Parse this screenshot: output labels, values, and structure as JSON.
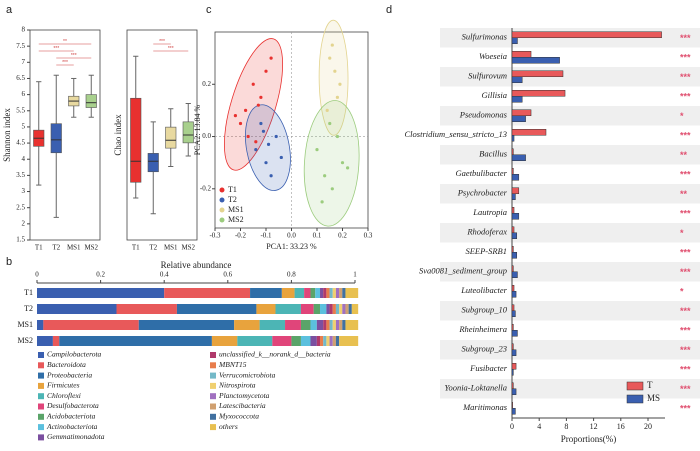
{
  "panels": [
    "a",
    "b",
    "c",
    "d"
  ],
  "chart_data": [
    {
      "type": "box",
      "ylabel": "Shannon index",
      "categories": [
        "T1",
        "T2",
        "MS1",
        "MS2"
      ],
      "colors": [
        "#e8312f",
        "#3a5fb0",
        "#e8d9a0",
        "#a8d08d"
      ],
      "boxes": [
        {
          "min": 3.2,
          "q1": 4.4,
          "median": 4.65,
          "q3": 4.9,
          "max": 6.4
        },
        {
          "min": 2.2,
          "q1": 4.2,
          "median": 4.6,
          "q3": 5.1,
          "max": 6.6
        },
        {
          "min": 5.3,
          "q1": 5.65,
          "median": 5.8,
          "q3": 5.95,
          "max": 6.5
        },
        {
          "min": 5.3,
          "q1": 5.6,
          "median": 5.75,
          "q3": 6.0,
          "max": 6.6
        }
      ],
      "ylim": [
        1.5,
        8
      ],
      "yticks": [
        1.5,
        2,
        2.5,
        3,
        3.5,
        4,
        4.5,
        5,
        5.5,
        6,
        6.5,
        7,
        7.5,
        8
      ],
      "annotations": [
        "**",
        "***",
        "***",
        "***"
      ]
    },
    {
      "type": "box",
      "ylabel": "Chao index",
      "categories": [
        "T1",
        "T2",
        "MS1",
        "MS2"
      ],
      "colors": [
        "#e8312f",
        "#3a5fb0",
        "#e8d9a0",
        "#a8d08d"
      ],
      "boxes": [
        {
          "min": 1.6,
          "q1": 2.2,
          "median": 3.0,
          "q3": 5.4,
          "max": 7.0
        },
        {
          "min": 1.0,
          "q1": 2.6,
          "median": 3.0,
          "q3": 3.3,
          "max": 4.5
        },
        {
          "min": 2.8,
          "q1": 3.5,
          "median": 3.8,
          "q3": 4.3,
          "max": 5.0
        },
        {
          "min": 3.2,
          "q1": 3.7,
          "median": 4.0,
          "q3": 4.5,
          "max": 5.2
        }
      ],
      "ylim": [
        0,
        8
      ],
      "annotations": [
        "***",
        "***"
      ]
    },
    {
      "type": "bar",
      "stacked": true,
      "orientation": "horizontal",
      "title": "Relative abundance",
      "categories": [
        "T1",
        "T2",
        "MS1",
        "MS2"
      ],
      "xlim": [
        0,
        1
      ],
      "xticks": [
        0,
        0.2,
        0.4,
        0.6,
        0.8,
        1
      ],
      "series": [
        {
          "name": "Campilobacterota",
          "color": "#3a5fb0",
          "values": [
            0.4,
            0.25,
            0.02,
            0.05
          ]
        },
        {
          "name": "Bacteroidota",
          "color": "#e8595a",
          "values": [
            0.27,
            0.19,
            0.3,
            0.02
          ]
        },
        {
          "name": "Proteobacteria",
          "color": "#2f6ea8",
          "values": [
            0.1,
            0.25,
            0.3,
            0.48
          ]
        },
        {
          "name": "Firmicutes",
          "color": "#e8a33d",
          "values": [
            0.04,
            0.06,
            0.08,
            0.08
          ]
        },
        {
          "name": "Chloroflexi",
          "color": "#4cb5b5",
          "values": [
            0.03,
            0.08,
            0.08,
            0.11
          ]
        },
        {
          "name": "Desulfobacterota",
          "color": "#e0457a",
          "values": [
            0.02,
            0.04,
            0.05,
            0.06
          ]
        },
        {
          "name": "Acidobacteriota",
          "color": "#5aa469",
          "values": [
            0.015,
            0.02,
            0.03,
            0.03
          ]
        },
        {
          "name": "Actinobacteriota",
          "color": "#5bc0de",
          "values": [
            0.015,
            0.02,
            0.02,
            0.03
          ]
        },
        {
          "name": "Gemmatimonadota",
          "color": "#7b4fa0",
          "values": [
            0.01,
            0.01,
            0.02,
            0.02
          ]
        },
        {
          "name": "unclassified_k__norank_d__bacteria",
          "color": "#b03a6b",
          "values": [
            0.01,
            0.01,
            0.01,
            0.01
          ]
        },
        {
          "name": "MBNT15",
          "color": "#e87d4c",
          "values": [
            0.01,
            0.01,
            0.01,
            0.01
          ]
        },
        {
          "name": "Verrucomicrobiota",
          "color": "#74b9c8",
          "values": [
            0.01,
            0.01,
            0.01,
            0.01
          ]
        },
        {
          "name": "Nitrospirota",
          "color": "#f0d070",
          "values": [
            0.01,
            0.01,
            0.01,
            0.01
          ]
        },
        {
          "name": "Planctomycetota",
          "color": "#a070c0",
          "values": [
            0.01,
            0.01,
            0.01,
            0.01
          ]
        },
        {
          "name": "Latescibacteria",
          "color": "#d0a070",
          "values": [
            0.01,
            0.01,
            0.01,
            0.01
          ]
        },
        {
          "name": "Myxococcota",
          "color": "#4070a0",
          "values": [
            0.01,
            0.01,
            0.01,
            0.01
          ]
        },
        {
          "name": "others",
          "color": "#e8c050",
          "values": [
            0.04,
            0.02,
            0.04,
            0.06
          ]
        }
      ]
    },
    {
      "type": "scatter",
      "xlabel": "PCA1: 33.23 %",
      "ylabel": "PCA2: 13.84 %",
      "xlim": [
        -0.3,
        0.3
      ],
      "ylim": [
        -0.35,
        0.4
      ],
      "xticks": [
        -0.3,
        -0.2,
        -0.1,
        {
          "value": 0,
          "label": "0.0"
        },
        0.1,
        0.2,
        0.3
      ],
      "yticks": [
        -0.2,
        {
          "value": 0,
          "label": "0.0"
        },
        0.2
      ],
      "legend": "lower left",
      "series": [
        {
          "name": "T1",
          "color": "#e8312f",
          "x": [
            -0.2,
            -0.18,
            -0.15,
            -0.12,
            -0.1,
            -0.17,
            -0.22,
            -0.14,
            -0.08,
            -0.13
          ],
          "y": [
            0.05,
            0.1,
            0.2,
            0.15,
            0.25,
            0.0,
            0.08,
            -0.02,
            0.3,
            0.12
          ]
        },
        {
          "name": "T2",
          "color": "#3a5fb0",
          "x": [
            -0.14,
            -0.1,
            -0.06,
            -0.12,
            -0.08,
            -0.04,
            -0.11,
            -0.09
          ],
          "y": [
            -0.05,
            -0.1,
            0.0,
            0.05,
            -0.15,
            -0.08,
            0.02,
            -0.03
          ]
        },
        {
          "name": "MS1",
          "color": "#e3d48f",
          "x": [
            0.15,
            0.17,
            0.18,
            0.16,
            0.19,
            0.14
          ],
          "y": [
            0.3,
            0.25,
            0.15,
            0.35,
            0.2,
            0.1
          ]
        },
        {
          "name": "MS2",
          "color": "#9ccc7e",
          "x": [
            0.1,
            0.13,
            0.16,
            0.2,
            0.18,
            0.12,
            0.22,
            0.15
          ],
          "y": [
            -0.05,
            -0.15,
            -0.2,
            -0.1,
            0.0,
            -0.25,
            -0.12,
            0.05
          ]
        }
      ]
    },
    {
      "type": "bar",
      "orientation": "horizontal",
      "xlabel": "Proportions(%)",
      "legend": "lower right",
      "categories": [
        "Sulfurimonas",
        "Woeseia",
        "Sulfurovum",
        "Gillisia",
        "Pseudomonas",
        "Clostridium_sensu_stricto_13",
        "Bacillus",
        "Gaetbulibacter",
        "Psychrobacter",
        "Lautropia",
        "Rhodoferax",
        "SEEP-SRB1",
        "Sva0081_sediment_group",
        "Luteolibacter",
        "Subgroup_10",
        "Rheinheimera",
        "Subgroup_23",
        "Fusibacter",
        "Yoonia-Loktanella",
        "Maritimonas"
      ],
      "xlim": [
        0,
        22.5
      ],
      "xticks": [
        0,
        4,
        8,
        12,
        16,
        20
      ],
      "series": [
        {
          "name": "T",
          "color": "#e8595a",
          "values": [
            22,
            2.8,
            7.5,
            7.8,
            2.8,
            5,
            0.2,
            0.2,
            1,
            0.3,
            0.3,
            0.2,
            0.2,
            0.3,
            0.3,
            0.2,
            0.2,
            0.6,
            0.2,
            0.1
          ]
        },
        {
          "name": "MS",
          "color": "#3a5fb0",
          "values": [
            0.8,
            7,
            1.5,
            1.5,
            2,
            0.3,
            2,
            1,
            0.5,
            1,
            0.7,
            0.7,
            0.8,
            0.6,
            0.5,
            0.8,
            0.6,
            0.2,
            0.6,
            0.5
          ]
        }
      ],
      "annotations": [
        "***",
        "***",
        "***",
        "***",
        "*",
        "***",
        "**",
        "***",
        "**",
        "***",
        "*",
        "***",
        "***",
        "*",
        "***",
        "***",
        "***",
        "***",
        "***",
        "***"
      ]
    }
  ]
}
